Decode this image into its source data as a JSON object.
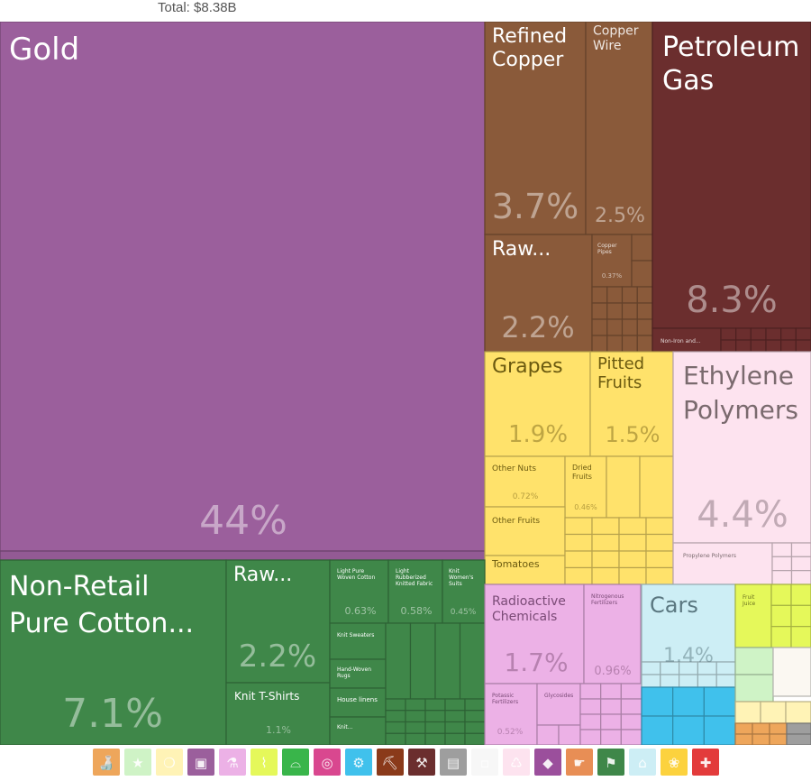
{
  "header": {
    "total": "Total: $8.38B"
  },
  "chart_data": {
    "type": "treemap",
    "total_label": "Total: $8.38B",
    "tiles": [
      {
        "name": "Gold",
        "share": "44%",
        "category": "precious-metals"
      },
      {
        "name": "Refined Copper",
        "share": "3.7%",
        "category": "metals"
      },
      {
        "name": "Copper Wire",
        "share": "2.5%",
        "category": "metals"
      },
      {
        "name": "Raw...",
        "share": "2.2%",
        "category": "metals"
      },
      {
        "name": "Copper Pipes",
        "share": "0.37%",
        "category": "metals"
      },
      {
        "name": "Petroleum Gas",
        "share": "8.3%",
        "category": "mineral-products"
      },
      {
        "name": "Non-Iron and...",
        "share": "",
        "category": "mineral-products"
      },
      {
        "name": "Grapes",
        "share": "1.9%",
        "category": "vegetable-products"
      },
      {
        "name": "Pitted Fruits",
        "share": "1.5%",
        "category": "vegetable-products"
      },
      {
        "name": "Other Nuts",
        "share": "0.72%",
        "category": "vegetable-products"
      },
      {
        "name": "Dried Fruits",
        "share": "0.46%",
        "category": "vegetable-products"
      },
      {
        "name": "Other Fruits",
        "share": "",
        "category": "vegetable-products"
      },
      {
        "name": "Tomatoes",
        "share": "",
        "category": "vegetable-products"
      },
      {
        "name": "Ethylene Polymers",
        "share": "4.4%",
        "category": "plastics"
      },
      {
        "name": "Propylene Polymers",
        "share": "",
        "category": "plastics"
      },
      {
        "name": "Non-Retail Pure Cotton...",
        "share": "7.1%",
        "category": "textiles"
      },
      {
        "name": "Raw...",
        "share": "2.2%",
        "category": "textiles"
      },
      {
        "name": "Knit T-Shirts",
        "share": "1.1%",
        "category": "textiles"
      },
      {
        "name": "Light Pure Woven Cotton",
        "share": "0.63%",
        "category": "textiles"
      },
      {
        "name": "Light Rubberized Knitted Fabric",
        "share": "0.58%",
        "category": "textiles"
      },
      {
        "name": "Knit Women's Suits",
        "share": "0.45%",
        "category": "textiles"
      },
      {
        "name": "Knit Sweaters",
        "share": "",
        "category": "textiles"
      },
      {
        "name": "Hand-Woven Rugs",
        "share": "",
        "category": "textiles"
      },
      {
        "name": "House linens",
        "share": "",
        "category": "textiles"
      },
      {
        "name": "Knit...",
        "share": "",
        "category": "textiles"
      },
      {
        "name": "Radioactive Chemicals",
        "share": "1.7%",
        "category": "chemicals"
      },
      {
        "name": "Nitrogenous Fertilizers",
        "share": "0.96%",
        "category": "chemicals"
      },
      {
        "name": "Potassic Fertilizers",
        "share": "0.52%",
        "category": "chemicals"
      },
      {
        "name": "Glycosides",
        "share": "",
        "category": "chemicals"
      },
      {
        "name": "Cars",
        "share": "1.4%",
        "category": "transportation"
      },
      {
        "name": "Fruit Juice",
        "share": "",
        "category": "foodstuffs"
      }
    ],
    "category_colors": {
      "precious-metals": "#9b5f9c",
      "metals": "#8a5a3a",
      "mineral-products": "#6b2e2e",
      "vegetable-products": "#ffe26b",
      "plastics": "#fde3ef",
      "textiles": "#3f8749",
      "chemicals": "#ecb1e6",
      "transportation": "#cdeef5",
      "machinery": "#40c1ec",
      "foodstuffs": "#e5f85a",
      "animal-products": "#eea65b",
      "misc": "#e8e8e8"
    },
    "legend_icons": [
      {
        "icon": "bottle-icon",
        "color": "#eea65b"
      },
      {
        "icon": "star-icon",
        "color": "#cff3c6"
      },
      {
        "icon": "drop-icon",
        "color": "#fff3b6"
      },
      {
        "icon": "picture-icon",
        "color": "#9b5f9c"
      },
      {
        "icon": "flask-icon",
        "color": "#ecb1e6"
      },
      {
        "icon": "wheat-icon",
        "color": "#e5f85a"
      },
      {
        "icon": "shoe-icon",
        "color": "#39b54a"
      },
      {
        "icon": "target-icon",
        "color": "#d9478f"
      },
      {
        "icon": "gears-icon",
        "color": "#40c1ec"
      },
      {
        "icon": "anvil-icon",
        "color": "#8a3a1a"
      },
      {
        "icon": "pickaxe-icon",
        "color": "#6b2e2e"
      },
      {
        "icon": "box-icon",
        "color": "#9e9e9e"
      },
      {
        "icon": "blank-icon",
        "color": "#f7f7f7"
      },
      {
        "icon": "recycle-icon",
        "color": "#fde3ef"
      },
      {
        "icon": "gem-icon",
        "color": "#9b4f9c"
      },
      {
        "icon": "hand-icon",
        "color": "#e88e55"
      },
      {
        "icon": "shirt-icon",
        "color": "#3f8749"
      },
      {
        "icon": "bell-icon",
        "color": "#cdeef5"
      },
      {
        "icon": "pumpkin-icon",
        "color": "#fcd23e"
      },
      {
        "icon": "bandage-icon",
        "color": "#e33b3b"
      }
    ]
  }
}
